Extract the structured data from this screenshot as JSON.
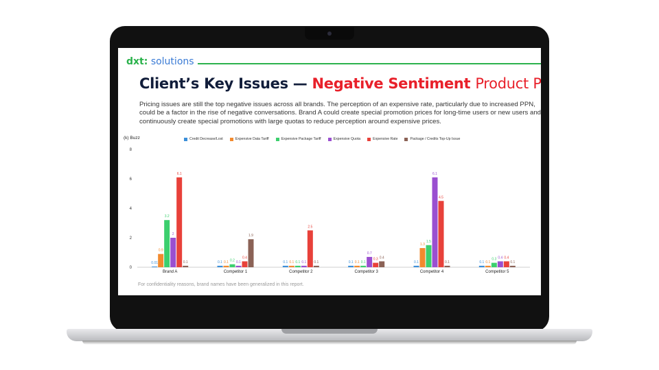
{
  "logo": {
    "brand": "dxt",
    "separator": ":",
    "product": "solutions"
  },
  "title": {
    "main": "Client’s Key Issues —",
    "highlight": "Negative Sentiment",
    "rest": "Product Pricing"
  },
  "description": "Pricing issues are still the top negative issues across all brands. The perception of an expensive rate, particularly due to increased PPN, could be a factor in the rise of negative conversations. Brand A could create special promotion prices for long-time users or new users and continuously create special promotions with large quotas to reduce perception around expensive prices.",
  "footnote": "For confidentiality reasons, brand names have been generalized in this report.",
  "colors": {
    "brand_green": "#2bb24c",
    "logo_blue": "#3a7bd5",
    "title_navy": "#111d3a",
    "accent_red": "#e8202a"
  },
  "chart_data": {
    "type": "bar",
    "ylabel": "(k) Buzz",
    "ylim": [
      0,
      8
    ],
    "yticks": [
      0,
      2,
      4,
      6,
      8
    ],
    "grid": false,
    "legend_position": "top",
    "categories": [
      "Brand A",
      "Competitor 1",
      "Competitor 2",
      "Competitor 3",
      "Competitor 4",
      "Competitor 5"
    ],
    "series": [
      {
        "name": "Credit Decrease/Lost",
        "color": "#3b8fd9",
        "values": [
          0.01,
          0.1,
          0.1,
          0.1,
          0.1,
          0.1
        ]
      },
      {
        "name": "Expensive Data Tariff",
        "color": "#f28a2e",
        "values": [
          0.9,
          0.1,
          0.1,
          0.1,
          1.3,
          0.1
        ]
      },
      {
        "name": "Expensive Package Tariff",
        "color": "#3ccf6e",
        "values": [
          3.2,
          0.2,
          0.1,
          0.1,
          1.5,
          0.3
        ]
      },
      {
        "name": "Expensive Quota",
        "color": "#9a4fd0",
        "values": [
          2,
          0.1,
          0.1,
          0.7,
          6.1,
          0.4
        ]
      },
      {
        "name": "Expensive Rate",
        "color": "#e8413a",
        "values": [
          6.1,
          0.4,
          2.5,
          0.3,
          4.5,
          0.4
        ]
      },
      {
        "name": "Package / Credits Top-Up Issue",
        "color": "#8b6256",
        "values": [
          0.1,
          1.9,
          0.1,
          0.4,
          0.1,
          0.1
        ]
      }
    ],
    "data_labels": [
      [
        "0.01",
        "0.9",
        "3.2",
        "2",
        "6.1",
        "0.1"
      ],
      [
        "0.1",
        "0.1",
        "0.2",
        "0.1",
        "0.4",
        "1.9"
      ],
      [
        "0.1",
        "0.1",
        "0.1",
        "0.1",
        "2.5",
        "0.1"
      ],
      [
        "0.1",
        "0.1",
        "0.1",
        "0.7",
        "0.3",
        "0.4"
      ],
      [
        "0.1",
        "1.3",
        "1.5",
        "6.1",
        "4.5",
        "0.1"
      ],
      [
        "0.1",
        "0.1",
        "0.3",
        "0.4",
        "0.4",
        "0.1"
      ]
    ]
  }
}
